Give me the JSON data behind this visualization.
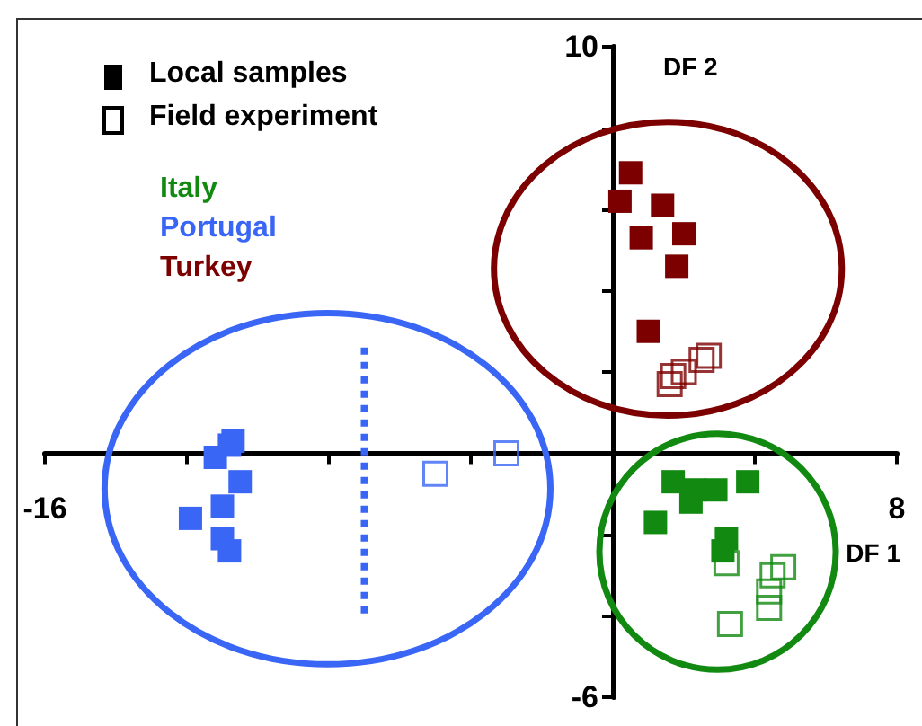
{
  "chart_data": {
    "type": "scatter",
    "xlabel": "DF 1",
    "ylabel": "DF 2",
    "xlim": [
      -16,
      8
    ],
    "xticks": [
      -16,
      {
        "value": -12,
        "label": null
      },
      {
        "value": -8,
        "label": null
      },
      {
        "value": -4,
        "label": null
      },
      {
        "value": 4,
        "label": null
      },
      8
    ],
    "ylim": [
      -6,
      10
    ],
    "yticks": [
      -6,
      {
        "value": -4,
        "label": null
      },
      {
        "value": -2,
        "label": null
      },
      {
        "value": 2,
        "label": null
      },
      {
        "value": 4,
        "label": null
      },
      {
        "value": 6,
        "label": null
      },
      {
        "value": 8,
        "label": null
      },
      10
    ],
    "marker": "square",
    "legend": "top left",
    "grid": false,
    "annotations": [
      "Local samples",
      "Field experiment"
    ],
    "series": [
      {
        "name": "Italy",
        "color": "#128a12",
        "x": [
          1.7,
          2.3,
          2.9,
          2.2,
          3.8,
          1.2,
          3.2,
          3.1
        ],
        "values": [
          -0.7,
          -0.9,
          -0.9,
          -1.2,
          -0.7,
          -1.7,
          -2.1,
          -2.4
        ]
      },
      {
        "name": "Portugal",
        "color": "#3a66f5",
        "x": [
          -10.7,
          -11.2,
          -10.5,
          -11.0,
          -11.9,
          -11.0,
          -10.8,
          -10.8
        ],
        "values": [
          0.3,
          -0.1,
          -0.7,
          -1.3,
          -1.6,
          -2.1,
          -2.4,
          0.2
        ]
      },
      {
        "name": "Turkey",
        "color": "#7d0000",
        "x": [
          0.5,
          0.2,
          1.4,
          0.8,
          2.0,
          1.8,
          1.0
        ],
        "values": [
          6.9,
          6.2,
          6.1,
          5.3,
          5.4,
          4.6,
          3.0
        ]
      },
      {
        "color": "#128a12",
        "x": [
          3.2,
          4.8,
          4.5,
          4.4,
          4.4,
          3.3
        ],
        "values": [
          -2.7,
          -2.8,
          -3.0,
          -3.4,
          -3.8,
          -4.2
        ]
      },
      {
        "color": "#3a66f5",
        "x": [
          -5.0,
          -3.0
        ],
        "values": [
          -0.5,
          0.0
        ]
      },
      {
        "color": "#7d0000",
        "x": [
          1.7,
          2.0,
          2.5,
          2.7,
          1.6
        ],
        "values": [
          1.9,
          2.0,
          2.3,
          2.4,
          1.7
        ]
      },
      {
        "type": "line",
        "color": "#3a66f5",
        "line_style": "dotted",
        "marker": "none",
        "x": [
          -7,
          -7
        ],
        "values": [
          2.6,
          -4
        ]
      }
    ]
  }
}
